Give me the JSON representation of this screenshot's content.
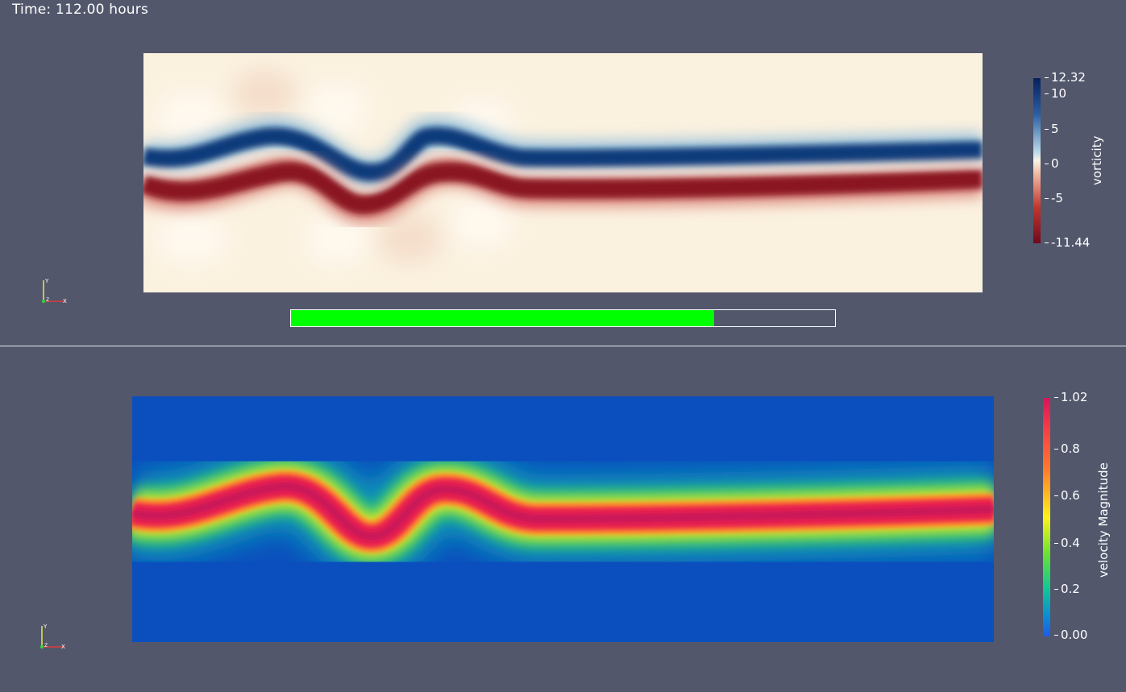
{
  "header": {
    "time_text": "Time: 112.00 hours"
  },
  "progress": {
    "fraction": 0.778,
    "color": "#00ff00"
  },
  "top_view": {
    "colorbar": {
      "title": "vorticity",
      "ticks": [
        "12.32",
        "10",
        "5",
        "0",
        "-5",
        "-11.44"
      ],
      "colors": [
        "#08205a",
        "#2a5fa3",
        "#fbf4e6",
        "#c2372d",
        "#6e0a1e"
      ]
    }
  },
  "bottom_view": {
    "colorbar": {
      "title": "velocity Magnitude",
      "ticks": [
        "1.02",
        "0.8",
        "0.6",
        "0.4",
        "0.2",
        "0.00"
      ],
      "colors": [
        "#d6155a",
        "#ff7a2c",
        "#fff21a",
        "#12c795",
        "#1f5be6"
      ]
    }
  },
  "axes_triad": {
    "x_label": "X",
    "y_label": "Y",
    "z_label": "Z"
  }
}
